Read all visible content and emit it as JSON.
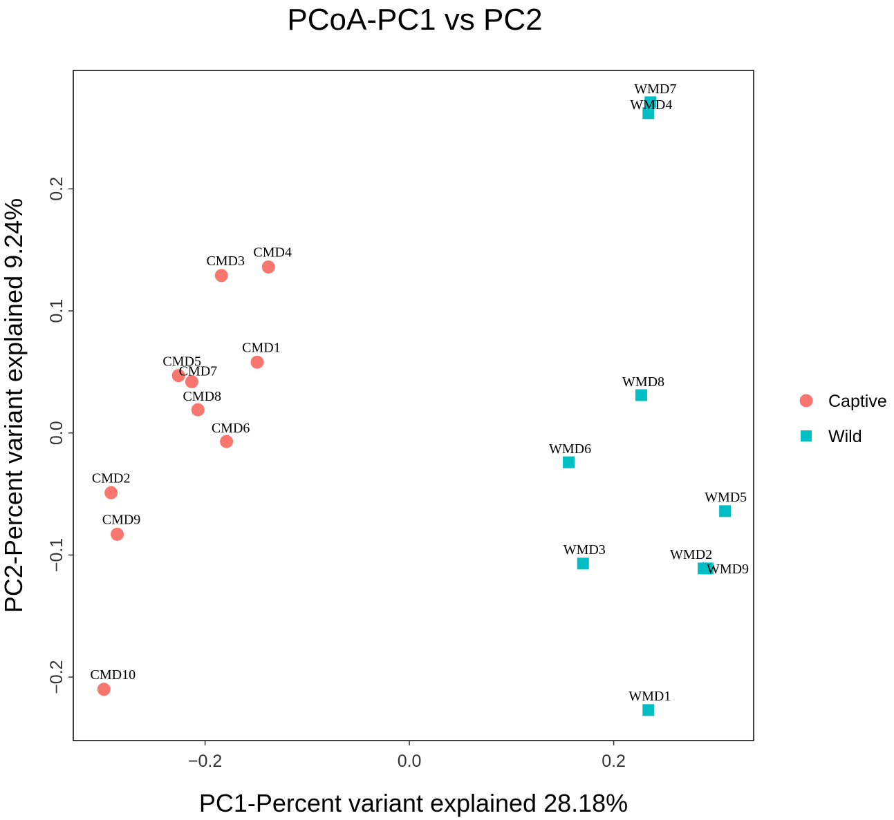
{
  "chart_data": {
    "type": "scatter",
    "title": "PCoA-PC1 vs PC2",
    "xlabel": "PC1-Percent variant explained 28.18%",
    "ylabel": "PC2-Percent variant explained 9.24%",
    "xlim": [
      -0.329,
      0.337
    ],
    "ylim": [
      -0.252,
      0.297
    ],
    "xticks": [
      -0.2,
      0.0,
      0.2
    ],
    "xtick_labels": [
      "−0.2",
      "0.0",
      "0.2"
    ],
    "yticks": [
      -0.2,
      -0.1,
      0.0,
      0.1,
      0.2
    ],
    "ytick_labels": [
      "−0.2",
      "−0.1",
      "0.0",
      "0.1",
      "0.2"
    ],
    "grid": false,
    "legend_position": "right",
    "series": [
      {
        "name": "Captive",
        "color": "#F8766D",
        "shape": "circle",
        "points": [
          {
            "label": "CMD1",
            "x": -0.149,
            "y": 0.058
          },
          {
            "label": "CMD2",
            "x": -0.292,
            "y": -0.049
          },
          {
            "label": "CMD3",
            "x": -0.184,
            "y": 0.129
          },
          {
            "label": "CMD4",
            "x": -0.138,
            "y": 0.136
          },
          {
            "label": "CMD5",
            "x": -0.226,
            "y": 0.047
          },
          {
            "label": "CMD6",
            "x": -0.179,
            "y": -0.007
          },
          {
            "label": "CMD7",
            "x": -0.213,
            "y": 0.042
          },
          {
            "label": "CMD8",
            "x": -0.207,
            "y": 0.019
          },
          {
            "label": "CMD9",
            "x": -0.286,
            "y": -0.083
          },
          {
            "label": "CMD10",
            "x": -0.299,
            "y": -0.21
          }
        ]
      },
      {
        "name": "Wild",
        "color": "#00BFC4",
        "shape": "square",
        "points": [
          {
            "label": "WMD1",
            "x": 0.234,
            "y": -0.227
          },
          {
            "label": "WMD2",
            "x": 0.288,
            "y": -0.111
          },
          {
            "label": "WMD3",
            "x": 0.17,
            "y": -0.107
          },
          {
            "label": "WMD4",
            "x": 0.234,
            "y": 0.262
          },
          {
            "label": "WMD5",
            "x": 0.309,
            "y": -0.064
          },
          {
            "label": "WMD6",
            "x": 0.156,
            "y": -0.024
          },
          {
            "label": "WMD7",
            "x": 0.236,
            "y": 0.271
          },
          {
            "label": "WMD8",
            "x": 0.227,
            "y": 0.031
          },
          {
            "label": "WMD9",
            "x": 0.292,
            "y": -0.111
          }
        ]
      }
    ]
  }
}
